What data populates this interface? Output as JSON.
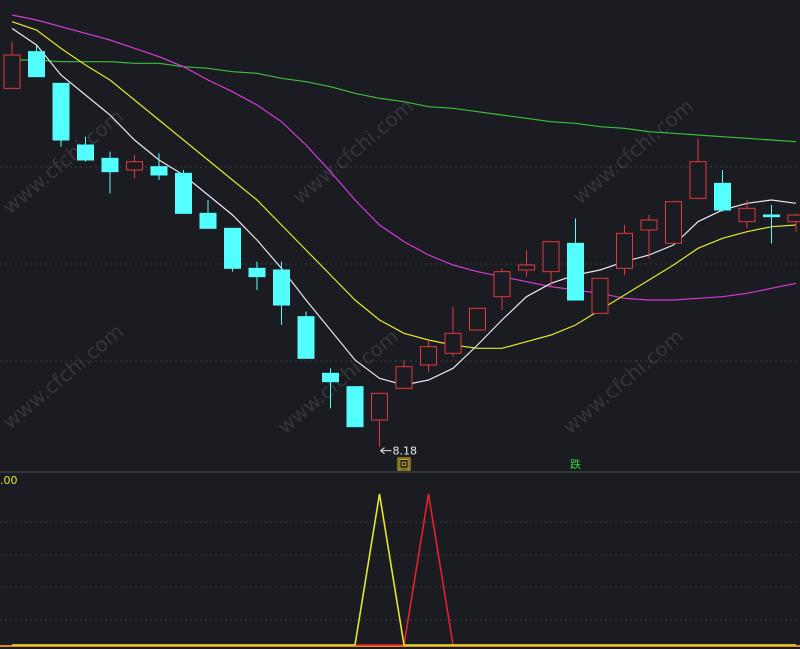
{
  "chart_data": {
    "type": "candlestick",
    "ylim": [
      8.04,
      10.86
    ],
    "watermark": "www.cfchi.com",
    "up_color": "#e0393e",
    "down_color": "#54ffff",
    "candles": [
      {
        "open": 10.33,
        "high": 10.61,
        "low": 10.33,
        "close": 10.53
      },
      {
        "open": 10.55,
        "high": 10.59,
        "low": 10.4,
        "close": 10.4
      },
      {
        "open": 10.36,
        "high": 10.36,
        "low": 9.98,
        "close": 10.02
      },
      {
        "open": 9.99,
        "high": 10.04,
        "low": 9.89,
        "close": 9.9
      },
      {
        "open": 9.91,
        "high": 9.95,
        "low": 9.7,
        "close": 9.83
      },
      {
        "open": 9.84,
        "high": 9.93,
        "low": 9.79,
        "close": 9.89
      },
      {
        "open": 9.86,
        "high": 9.94,
        "low": 9.78,
        "close": 9.81
      },
      {
        "open": 9.82,
        "high": 9.84,
        "low": 9.58,
        "close": 9.58
      },
      {
        "open": 9.58,
        "high": 9.66,
        "low": 9.49,
        "close": 9.49
      },
      {
        "open": 9.49,
        "high": 9.49,
        "low": 9.23,
        "close": 9.25
      },
      {
        "open": 9.25,
        "high": 9.29,
        "low": 9.12,
        "close": 9.2
      },
      {
        "open": 9.24,
        "high": 9.29,
        "low": 8.91,
        "close": 9.03
      },
      {
        "open": 8.96,
        "high": 8.99,
        "low": 8.71,
        "close": 8.71
      },
      {
        "open": 8.62,
        "high": 8.65,
        "low": 8.41,
        "close": 8.57
      },
      {
        "open": 8.54,
        "high": 8.54,
        "low": 8.3,
        "close": 8.3
      },
      {
        "open": 8.34,
        "high": 8.5,
        "low": 8.18,
        "close": 8.5
      },
      {
        "open": 8.53,
        "high": 8.7,
        "low": 8.53,
        "close": 8.66,
        "signal": "回"
      },
      {
        "open": 8.67,
        "high": 8.82,
        "low": 8.63,
        "close": 8.78
      },
      {
        "open": 8.74,
        "high": 9.02,
        "low": 8.72,
        "close": 8.86
      },
      {
        "open": 8.88,
        "high": 9.01,
        "low": 8.88,
        "close": 9.01
      },
      {
        "open": 9.08,
        "high": 9.25,
        "low": 9.0,
        "close": 9.23
      },
      {
        "open": 9.24,
        "high": 9.36,
        "low": 9.2,
        "close": 9.27
      },
      {
        "open": 9.23,
        "high": 9.41,
        "low": 9.14,
        "close": 9.41
      },
      {
        "open": 9.4,
        "high": 9.55,
        "low": 9.06,
        "close": 9.06,
        "signal": "跌"
      },
      {
        "open": 8.98,
        "high": 9.19,
        "low": 8.98,
        "close": 9.19
      },
      {
        "open": 9.25,
        "high": 9.51,
        "low": 9.21,
        "close": 9.46
      },
      {
        "open": 9.48,
        "high": 9.57,
        "low": 9.31,
        "close": 9.54
      },
      {
        "open": 9.4,
        "high": 9.65,
        "low": 9.4,
        "close": 9.65
      },
      {
        "open": 9.67,
        "high": 10.03,
        "low": 9.67,
        "close": 9.89
      },
      {
        "open": 9.76,
        "high": 9.84,
        "low": 9.59,
        "close": 9.6
      },
      {
        "open": 9.53,
        "high": 9.66,
        "low": 9.49,
        "close": 9.61
      },
      {
        "open": 9.57,
        "high": 9.63,
        "low": 9.4,
        "close": 9.56
      },
      {
        "open": 9.53,
        "high": 9.58,
        "low": 9.47,
        "close": 9.57
      }
    ],
    "series": [
      {
        "color": "#3cbf3c",
        "values": [
          10.5,
          10.5,
          10.49,
          10.49,
          10.49,
          10.48,
          10.48,
          10.46,
          10.45,
          10.43,
          10.42,
          10.39,
          10.37,
          10.34,
          10.3,
          10.27,
          10.25,
          10.22,
          10.21,
          10.19,
          10.17,
          10.15,
          10.13,
          10.12,
          10.1,
          10.09,
          10.07,
          10.06,
          10.05,
          10.04,
          10.03,
          10.02,
          10.01
        ]
      },
      {
        "color": "#d63ad6",
        "values": [
          10.77,
          10.74,
          10.7,
          10.66,
          10.62,
          10.57,
          10.52,
          10.46,
          10.38,
          10.31,
          10.23,
          10.13,
          9.99,
          9.83,
          9.66,
          9.51,
          9.41,
          9.33,
          9.27,
          9.23,
          9.2,
          9.17,
          9.14,
          9.12,
          9.1,
          9.07,
          9.06,
          9.06,
          9.07,
          9.08,
          9.1,
          9.13,
          9.16
        ]
      },
      {
        "color": "#e5e52e",
        "values": [
          10.73,
          10.68,
          10.57,
          10.47,
          10.38,
          10.26,
          10.14,
          10.02,
          9.9,
          9.78,
          9.66,
          9.51,
          9.36,
          9.21,
          9.06,
          8.94,
          8.86,
          8.82,
          8.79,
          8.77,
          8.77,
          8.81,
          8.85,
          8.91,
          9.0,
          9.09,
          9.18,
          9.27,
          9.37,
          9.43,
          9.47,
          9.5,
          9.51
        ]
      },
      {
        "color": "#e8e8e8",
        "values": [
          10.69,
          10.59,
          10.41,
          10.29,
          10.17,
          10.02,
          9.9,
          9.81,
          9.69,
          9.57,
          9.42,
          9.25,
          9.06,
          8.88,
          8.7,
          8.59,
          8.55,
          8.58,
          8.65,
          8.79,
          8.94,
          9.08,
          9.16,
          9.21,
          9.24,
          9.29,
          9.33,
          9.39,
          9.53,
          9.6,
          9.64,
          9.66,
          9.64
        ]
      }
    ],
    "indicator": {
      "label": ".00",
      "ylim": [
        0,
        1
      ],
      "series": [
        {
          "color": "#e8202a",
          "values": [
            0,
            0,
            0,
            0,
            0,
            0,
            0,
            0,
            0,
            0,
            0,
            0,
            0,
            0,
            0,
            0,
            0,
            1,
            0,
            0,
            0,
            0,
            0,
            0,
            0,
            0,
            0,
            0,
            0,
            0,
            0,
            0,
            0
          ]
        },
        {
          "color": "#e5e52e",
          "values": [
            0,
            0,
            0,
            0,
            0,
            0,
            0,
            0,
            0,
            0,
            0,
            0,
            0,
            0,
            0,
            1,
            0,
            0,
            0,
            0,
            0,
            0,
            0,
            0,
            0,
            0,
            0,
            0,
            0,
            0,
            0,
            0,
            0
          ]
        }
      ]
    }
  }
}
